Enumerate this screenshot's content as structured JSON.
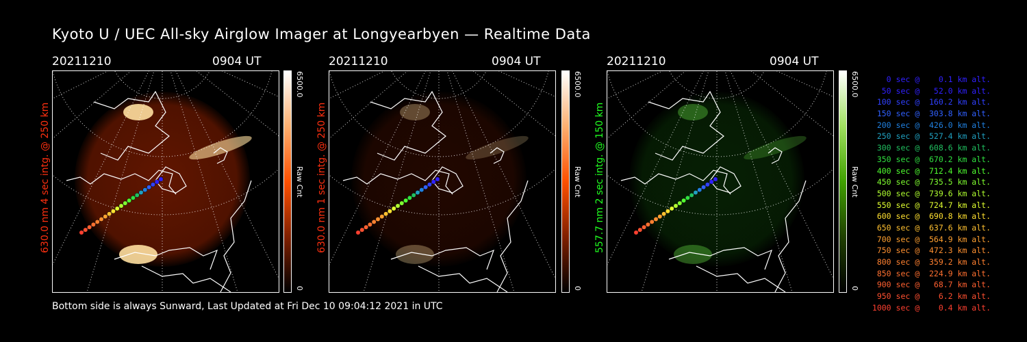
{
  "title": "Kyoto U / UEC All-sky Airglow Imager at Longyearbyen — Realtime Data",
  "footer": "Bottom side is always Sunward, Last Updated at Fri Dec 10 09:04:12 2021 in UTC",
  "panels": [
    {
      "date": "20211210",
      "time": "0904 UT",
      "label": "630.0 nm 4 sec intg. @ 250 km",
      "label_color": "#ff3010",
      "cbar_max": "6500.0",
      "cbar_unit": "Raw Cnt",
      "cbar_min": "0",
      "emission": "red",
      "intensity": 1.0
    },
    {
      "date": "20211210",
      "time": "0904 UT",
      "label": "630.0 nm 1 sec intg. @ 250 km",
      "label_color": "#ff3010",
      "cbar_max": "6500.0",
      "cbar_unit": "Raw Cnt",
      "cbar_min": "0",
      "emission": "red",
      "intensity": 0.35
    },
    {
      "date": "20211210",
      "time": "0904 UT",
      "label": "557.7 nm 2 sec intg. @ 150 km",
      "label_color": "#20ff20",
      "cbar_max": "6500.0",
      "cbar_unit": "Raw Cnt",
      "cbar_min": "0",
      "emission": "green",
      "intensity": 0.45
    }
  ],
  "legend": [
    {
      "text": "   0 sec @    0.1 km alt.",
      "color": "#3020ff"
    },
    {
      "text": "  50 sec @   52.0 km alt.",
      "color": "#3020ff"
    },
    {
      "text": " 100 sec @  160.2 km alt.",
      "color": "#3040ff"
    },
    {
      "text": " 150 sec @  303.8 km alt.",
      "color": "#3060ff"
    },
    {
      "text": " 200 sec @  426.0 km alt.",
      "color": "#2080e0"
    },
    {
      "text": " 250 sec @  527.4 km alt.",
      "color": "#20a0c0"
    },
    {
      "text": " 300 sec @  608.6 km alt.",
      "color": "#20c060"
    },
    {
      "text": " 350 sec @  670.2 km alt.",
      "color": "#30e040"
    },
    {
      "text": " 400 sec @  712.4 km alt.",
      "color": "#50ff30"
    },
    {
      "text": " 450 sec @  735.5 km alt.",
      "color": "#80ff30"
    },
    {
      "text": " 500 sec @  739.6 km alt.",
      "color": "#b0ff30"
    },
    {
      "text": " 550 sec @  724.7 km alt.",
      "color": "#e0ff30"
    },
    {
      "text": " 600 sec @  690.8 km alt.",
      "color": "#ffe030"
    },
    {
      "text": " 650 sec @  637.6 km alt.",
      "color": "#ffc030"
    },
    {
      "text": " 700 sec @  564.9 km alt.",
      "color": "#ffa030"
    },
    {
      "text": " 750 sec @  472.3 km alt.",
      "color": "#ff9030"
    },
    {
      "text": " 800 sec @  359.2 km alt.",
      "color": "#ff8030"
    },
    {
      "text": " 850 sec @  224.9 km alt.",
      "color": "#ff7030"
    },
    {
      "text": " 900 sec @   68.7 km alt.",
      "color": "#ff6030"
    },
    {
      "text": " 950 sec @    6.2 km alt.",
      "color": "#ff5030"
    },
    {
      "text": "1000 sec @    0.4 km alt.",
      "color": "#ff4030"
    }
  ]
}
